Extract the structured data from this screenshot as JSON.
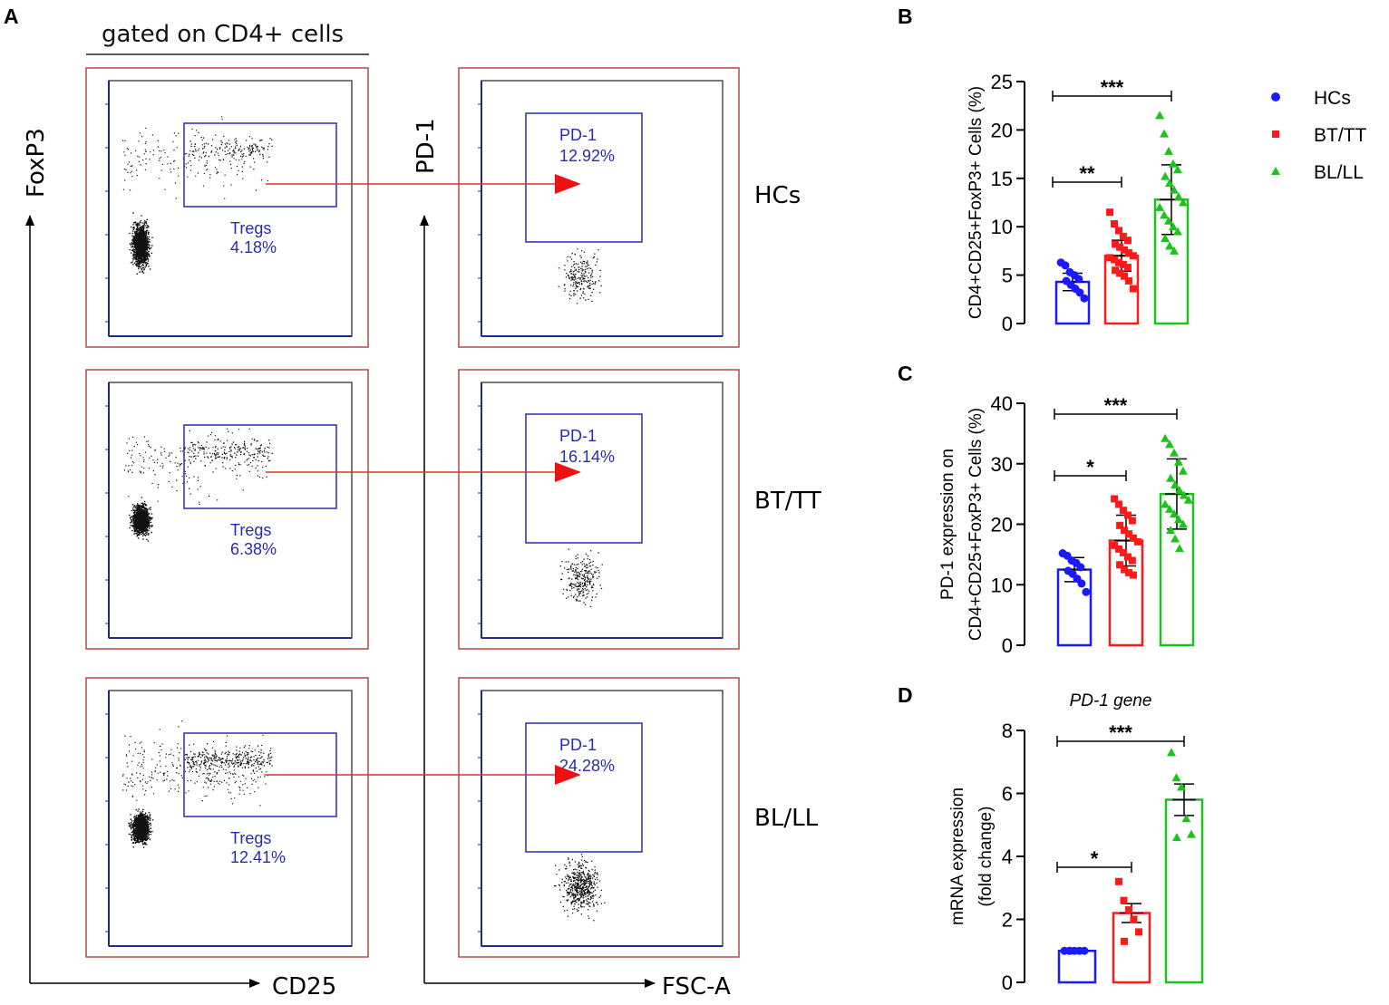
{
  "panel_labels": {
    "a": "A",
    "b": "B",
    "c": "C",
    "d": "D"
  },
  "flow": {
    "header": "gated on CD4+ cells",
    "left_yaxis": "FoxP3",
    "left_xaxis": "CD25",
    "right_yaxis": "PD-1",
    "right_xaxis": "FSC-A",
    "rows": [
      {
        "group": "HCs",
        "treg_label": "Tregs",
        "treg_pct": "4.18%",
        "pd1_label": "PD-1",
        "pd1_pct": "12.92%"
      },
      {
        "group": "BT/TT",
        "treg_label": "Tregs",
        "treg_pct": "6.38%",
        "pd1_label": "PD-1",
        "pd1_pct": "16.14%"
      },
      {
        "group": "BL/LL",
        "treg_label": "Tregs",
        "treg_pct": "12.41%",
        "pd1_label": "PD-1",
        "pd1_pct": "24.28%"
      }
    ]
  },
  "legend": {
    "items": [
      {
        "label": "HCs",
        "color": "#1a1aff",
        "marker": "circle"
      },
      {
        "label": "BT/TT",
        "color": "#ff1a1a",
        "marker": "square"
      },
      {
        "label": "BL/LL",
        "color": "#1dc21d",
        "marker": "triangle"
      }
    ]
  },
  "chart_data": [
    {
      "id": "B",
      "type": "bar",
      "title": "",
      "ylabel": [
        "CD4+CD25+FoxP3+ Cells (%)"
      ],
      "ylim": [
        0,
        25
      ],
      "yticks": [
        0,
        5,
        10,
        15,
        20,
        25
      ],
      "categories": [
        "HCs",
        "BT/TT",
        "BL/LL"
      ],
      "means": [
        4.3,
        7.0,
        12.8
      ],
      "errors": [
        0.9,
        1.6,
        3.6
      ],
      "points": [
        [
          6.3,
          6.0,
          5.3,
          5.0,
          4.6,
          4.4,
          4.0,
          3.6,
          3.2,
          2.6
        ],
        [
          11.5,
          10.3,
          9.6,
          9.0,
          8.6,
          8.2,
          7.9,
          7.6,
          7.3,
          7.0,
          6.8,
          6.6,
          6.3,
          6.1,
          5.8,
          5.5,
          5.2,
          4.9,
          4.4,
          3.6
        ],
        [
          21.5,
          19.6,
          17.8,
          16.5,
          15.9,
          15.2,
          14.5,
          13.8,
          13.1,
          12.5,
          12.0,
          11.2,
          10.6,
          10.0,
          9.5,
          8.8,
          8.0,
          7.5
        ]
      ],
      "significance": [
        {
          "from": 0,
          "to": 1,
          "label": "**"
        },
        {
          "from": 0,
          "to": 2,
          "label": "***"
        }
      ]
    },
    {
      "id": "C",
      "type": "bar",
      "title": "",
      "ylabel": [
        "PD-1 expression on",
        "CD4+CD25+FoxP3+ Cells (%)"
      ],
      "ylim": [
        0,
        40
      ],
      "yticks": [
        0,
        10,
        20,
        30,
        40
      ],
      "categories": [
        "HCs",
        "BT/TT",
        "BL/LL"
      ],
      "means": [
        12.5,
        17.3,
        25.0
      ],
      "errors": [
        2.0,
        4.2,
        5.8
      ],
      "points": [
        [
          15.2,
          14.8,
          14.0,
          13.6,
          12.9,
          12.3,
          11.8,
          11.0,
          10.2,
          8.8
        ],
        [
          24.2,
          23.3,
          22.3,
          21.5,
          20.6,
          19.8,
          19.0,
          18.4,
          17.7,
          17.1,
          16.5,
          15.9,
          15.3,
          14.6,
          14.0,
          13.3,
          12.5,
          12.0,
          11.6
        ],
        [
          34.2,
          33.2,
          31.8,
          30.3,
          28.8,
          27.6,
          26.5,
          25.6,
          24.8,
          24.0,
          23.3,
          22.5,
          21.7,
          20.8,
          20.0,
          19.0,
          17.6,
          16.0
        ]
      ],
      "significance": [
        {
          "from": 0,
          "to": 1,
          "label": "*"
        },
        {
          "from": 0,
          "to": 2,
          "label": "***"
        }
      ]
    },
    {
      "id": "D",
      "type": "bar",
      "title": "PD-1 gene",
      "ylabel": [
        "mRNA expression",
        "(fold change)"
      ],
      "ylim": [
        0,
        8
      ],
      "yticks": [
        0,
        2,
        4,
        6,
        8
      ],
      "categories": [
        "HCs",
        "BT/TT",
        "BL/LL"
      ],
      "means": [
        1.0,
        2.2,
        5.8
      ],
      "errors": [
        0.0,
        0.3,
        0.5
      ],
      "points": [
        [
          1.0,
          1.0,
          1.0,
          1.0,
          1.0,
          1.0
        ],
        [
          3.2,
          2.6,
          2.3,
          2.0,
          1.6,
          1.3
        ],
        [
          7.3,
          6.5,
          6.2,
          5.2,
          4.7,
          4.6
        ]
      ],
      "significance": [
        {
          "from": 0,
          "to": 1,
          "label": "*"
        },
        {
          "from": 0,
          "to": 2,
          "label": "***"
        }
      ]
    }
  ]
}
